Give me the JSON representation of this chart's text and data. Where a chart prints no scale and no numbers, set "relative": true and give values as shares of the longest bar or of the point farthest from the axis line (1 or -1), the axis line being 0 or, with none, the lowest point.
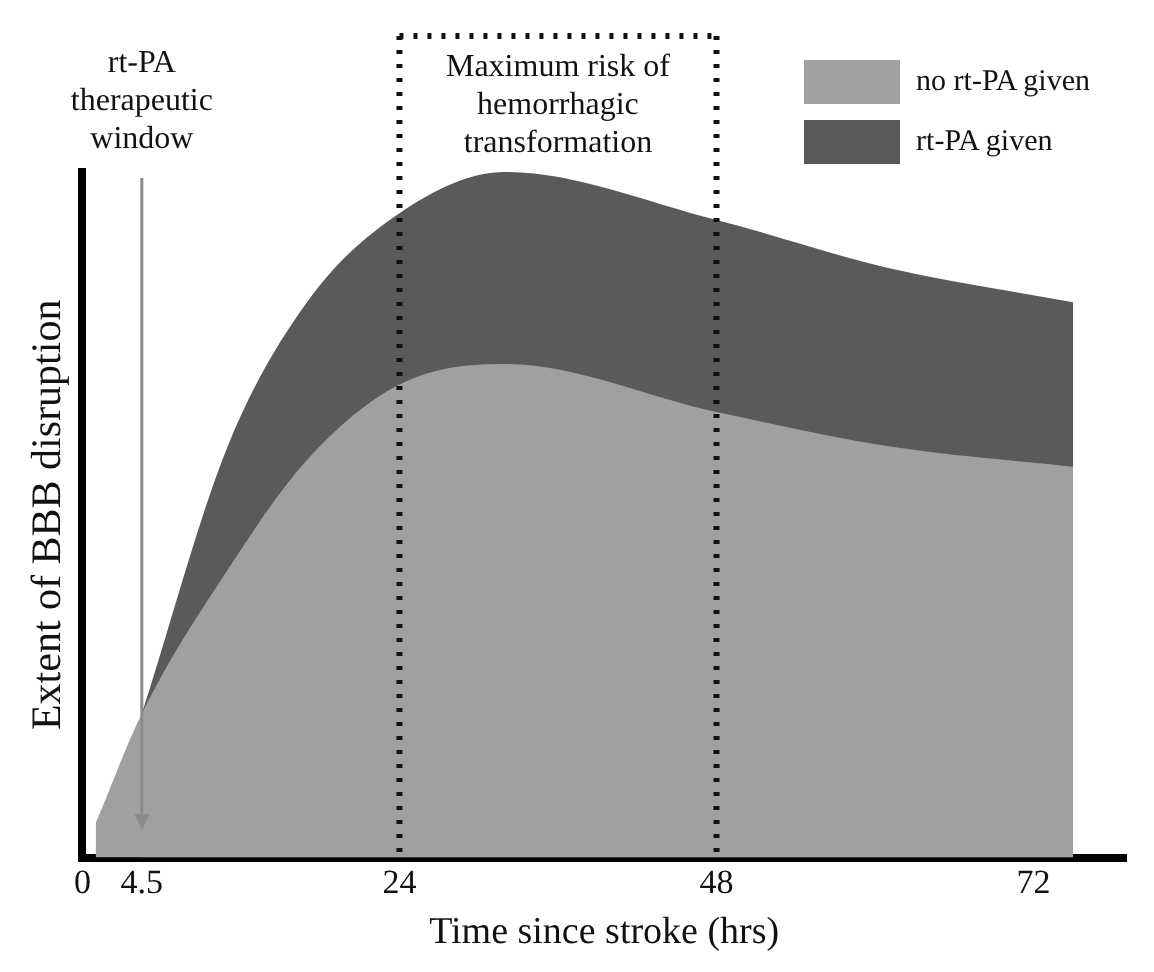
{
  "chart_data": {
    "type": "area",
    "relative": true,
    "xlabel": "Time since stroke (hrs)",
    "ylabel": "Extent of BBB disruption",
    "xlim": [
      0,
      79
    ],
    "xticks": [
      0,
      4.5,
      24,
      48,
      72
    ],
    "grid": false,
    "legend": "top right",
    "series": [
      {
        "name": "no rt-PA given",
        "color": "#a0a0a0",
        "x": [
          1,
          4.5,
          11,
          17,
          24,
          32,
          48,
          61,
          75
        ],
        "values": [
          0.05,
          0.21,
          0.42,
          0.58,
          0.69,
          0.72,
          0.65,
          0.6,
          0.57
        ]
      },
      {
        "name": "rt-PA given",
        "color": "#5a5a5a",
        "x": [
          4.5,
          11,
          17,
          24,
          32,
          48,
          61,
          75
        ],
        "values": [
          0.21,
          0.6,
          0.81,
          0.94,
          1,
          0.93,
          0.86,
          0.81
        ]
      }
    ],
    "ref_lines": [
      {
        "axis": "x",
        "value": 4.5,
        "label": "rt-PA therapeutic window",
        "color": "#8c8c8c"
      },
      {
        "axis": "x",
        "value": 24,
        "color": "#111111",
        "line_style": "dotted"
      },
      {
        "axis": "x",
        "value": 48,
        "color": "#111111",
        "line_style": "dotted"
      }
    ],
    "annotations": [
      "Maximum risk of hemorrhagic transformation"
    ]
  }
}
